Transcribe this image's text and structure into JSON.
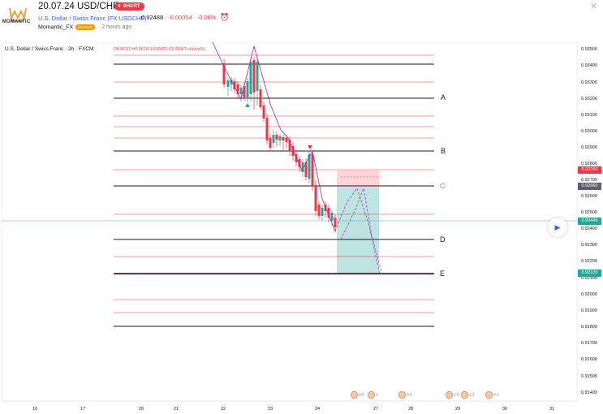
{
  "header": {
    "logo_text": "MOMANTIC",
    "title": "20.07.24 USD/CHF",
    "direction_badge": "SHORT",
    "symbol_link": "U.S. Dollar / Swiss Franc (FX:USDCHF)",
    "price": "0.92488",
    "change": "-0.00054",
    "change_pct": "-0.06%",
    "author": "Momantic_FX",
    "author_badge": "Premium",
    "time_ago": "2 hours ago"
  },
  "chart": {
    "legend": "U.S. Dollar / Swiss Franc · 2h · FXCM",
    "ohlc": "O0.95110 H0.95116 L0.95052 C0.95067 n/a(n/a%)",
    "current_price_tag": "0.92449",
    "stop_tag": "0.92760",
    "entry_tag": "0.92660",
    "target_tag": "0.92133",
    "level_labels": [
      "A",
      "B",
      "C",
      "D",
      "E"
    ],
    "price_axis": [
      "0.93500",
      "0.93400",
      "0.93300",
      "0.93200",
      "0.93100",
      "0.93000",
      "0.92900",
      "0.92800",
      "0.92700",
      "0.92600",
      "0.92500",
      "0.92400",
      "0.92300",
      "0.92200",
      "0.92100",
      "0.92000",
      "0.91900",
      "0.91800",
      "0.91700",
      "0.91600",
      "0.91500",
      "0.91400"
    ],
    "time_axis": [
      "16",
      "17",
      "20",
      "21",
      "22",
      "23",
      "24",
      "27",
      "28",
      "29",
      "30",
      "31"
    ],
    "events": [
      "2 5",
      "2",
      "3 3",
      "2 5",
      "2 3",
      "4 2"
    ],
    "colors": {
      "bull": "#26a69a",
      "bear": "#f23645",
      "purple": "#9c27b0",
      "target_zone": "#b2dfdb",
      "stop_zone": "#ffcdd2"
    }
  }
}
